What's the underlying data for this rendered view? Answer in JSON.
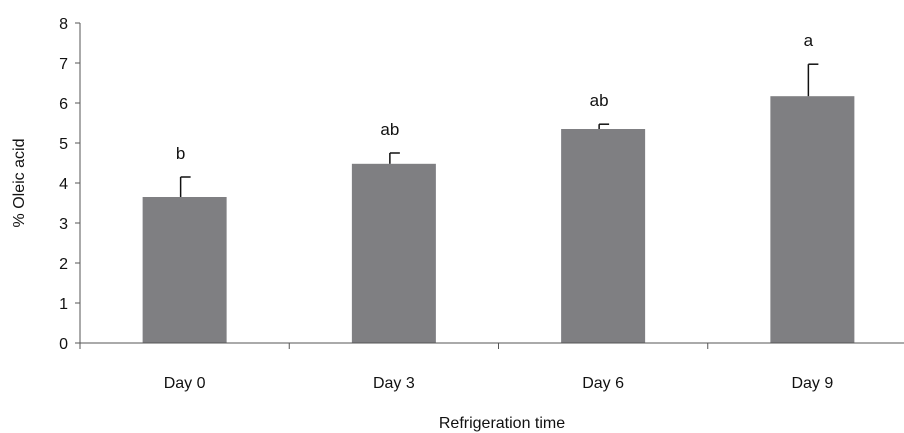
{
  "chart_data": {
    "type": "bar",
    "title": "",
    "xlabel": "Refrigeration time",
    "ylabel": "% Oleic acid",
    "categories": [
      "Day 0",
      "Day 3",
      "Day 6",
      "Day 9"
    ],
    "series": [
      {
        "values": [
          3.65,
          4.48,
          5.35,
          6.17
        ],
        "error": [
          0.5,
          0.27,
          0.12,
          0.8
        ],
        "labels": [
          "b",
          "ab",
          "ab",
          "a"
        ]
      }
    ],
    "ylim": [
      0,
      8
    ],
    "yticks": [
      "0",
      "1",
      "2",
      "3",
      "4",
      "5",
      "6",
      "7",
      "8"
    ],
    "grid": false,
    "legend": "none",
    "bar_color": "#7f7f82",
    "axis_color": "#555555",
    "error_bar_color": "#111111"
  }
}
